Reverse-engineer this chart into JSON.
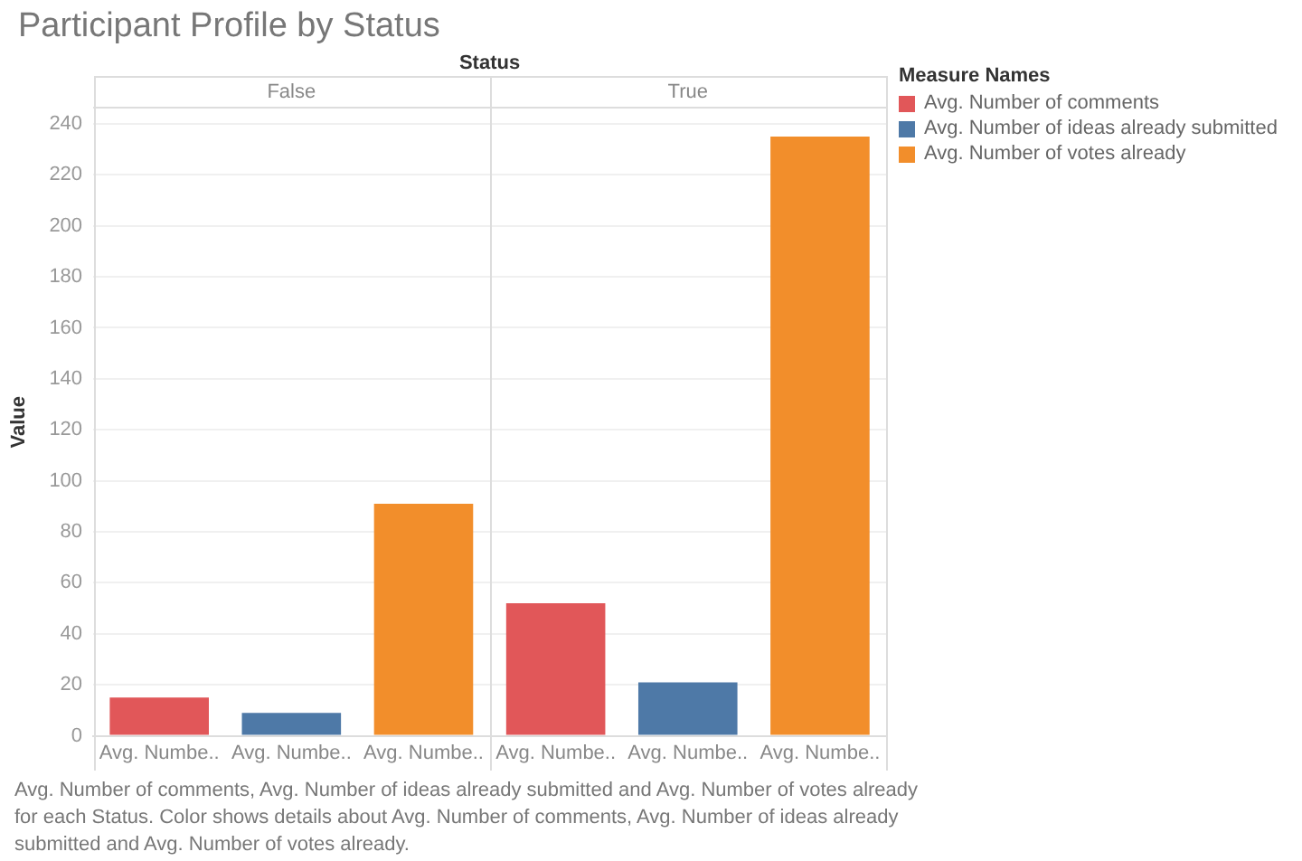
{
  "chart_data": {
    "type": "bar",
    "title": "Participant Profile by Status",
    "xlabel": "Status",
    "ylabel": "Value",
    "legend_title": "Measure Names",
    "legend": "right",
    "categories": [
      "Avg. Numbe..",
      "Avg. Numbe..",
      "Avg. Numbe..",
      "Avg. Numbe..",
      "Avg. Numbe..",
      "Avg. Numbe.."
    ],
    "series": [
      {
        "name": "Avg. Number of comments",
        "color": "#e15759",
        "values": [
          15,
          null,
          null,
          52,
          null,
          null
        ]
      },
      {
        "name": "Avg. Number of ideas already submitted",
        "color": "#4e79a7",
        "values": [
          null,
          9,
          null,
          null,
          21,
          null
        ]
      },
      {
        "name": "Avg. Number of votes already",
        "color": "#f28e2b",
        "values": [
          null,
          null,
          91,
          null,
          null,
          235
        ]
      }
    ],
    "ylim": [
      0,
      246
    ],
    "yticks": [
      0,
      20,
      40,
      60,
      80,
      100,
      120,
      140,
      160,
      180,
      200,
      220,
      240
    ],
    "grid": "y",
    "annotations": [
      "False",
      "True",
      "Avg. Number of comments, Avg. Number of ideas already submitted and Avg. Number of votes already for each Status.  Color shows details about Avg. Number of comments, Avg. Number of ideas already submitted and Avg. Number of votes already."
    ]
  }
}
